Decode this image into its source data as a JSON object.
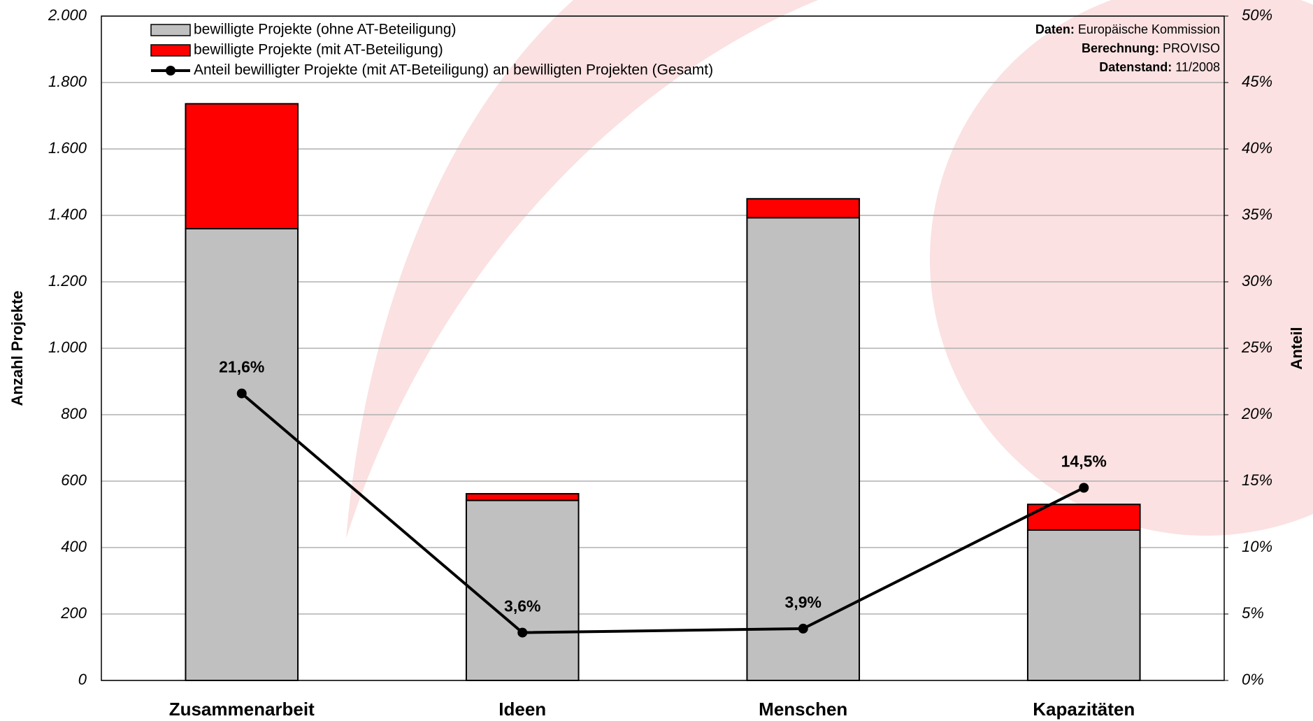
{
  "chart_data": {
    "type": "bar",
    "stacked": true,
    "categories": [
      "Zusammenarbeit",
      "Ideen",
      "Menschen",
      "Kapazitäten"
    ],
    "series": [
      {
        "name": "bewilligte Projekte (ohne AT-Beteiligung)",
        "color": "#c0c0c0",
        "type": "bar",
        "values": [
          1360,
          542,
          1393,
          453
        ]
      },
      {
        "name": "bewilligte Projekte (mit AT-Beteiligung)",
        "color": "#ff0000",
        "type": "bar",
        "values": [
          376,
          20,
          57,
          77
        ]
      },
      {
        "name": "Anteil bewilligter Projekte (mit AT-Beteiligung) an bewilligten Projekten (Gesamt)",
        "color": "#000000",
        "type": "line",
        "axis": "y2",
        "values": [
          21.6,
          3.6,
          3.9,
          14.5
        ],
        "value_labels": [
          "21,6%",
          "3,6%",
          "3,9%",
          "14,5%"
        ]
      }
    ],
    "ylim": [
      0,
      2000
    ],
    "yticks": [
      0,
      200,
      400,
      600,
      800,
      {
        "value": 1000,
        "label": "1.000"
      },
      {
        "value": 1200,
        "label": "1.200"
      },
      {
        "value": 1400,
        "label": "1.400"
      },
      {
        "value": 1600,
        "label": "1.600"
      },
      {
        "value": 1800,
        "label": "1.800"
      },
      {
        "value": 2000,
        "label": "2.000"
      }
    ],
    "y2lim": [
      0,
      50
    ],
    "y2ticks": [
      {
        "value": 0,
        "label": "0%"
      },
      {
        "value": 5,
        "label": "5%"
      },
      {
        "value": 10,
        "label": "10%"
      },
      {
        "value": 15,
        "label": "15%"
      },
      {
        "value": 20,
        "label": "20%"
      },
      {
        "value": 25,
        "label": "25%"
      },
      {
        "value": 30,
        "label": "30%"
      },
      {
        "value": 35,
        "label": "35%"
      },
      {
        "value": 40,
        "label": "40%"
      },
      {
        "value": 45,
        "label": "45%"
      },
      {
        "value": 50,
        "label": "50%"
      }
    ],
    "ylabel": "Anzahl Projekte",
    "y2label": "Anteil",
    "annotations": [
      {
        "label": "Daten:",
        "text": "Europäische Kommission"
      },
      {
        "label": "Berechnung:",
        "text": "PROVISO"
      },
      {
        "label": "Datenstand:",
        "text": "11/2008"
      }
    ],
    "grid": true,
    "legend": "top-left"
  }
}
